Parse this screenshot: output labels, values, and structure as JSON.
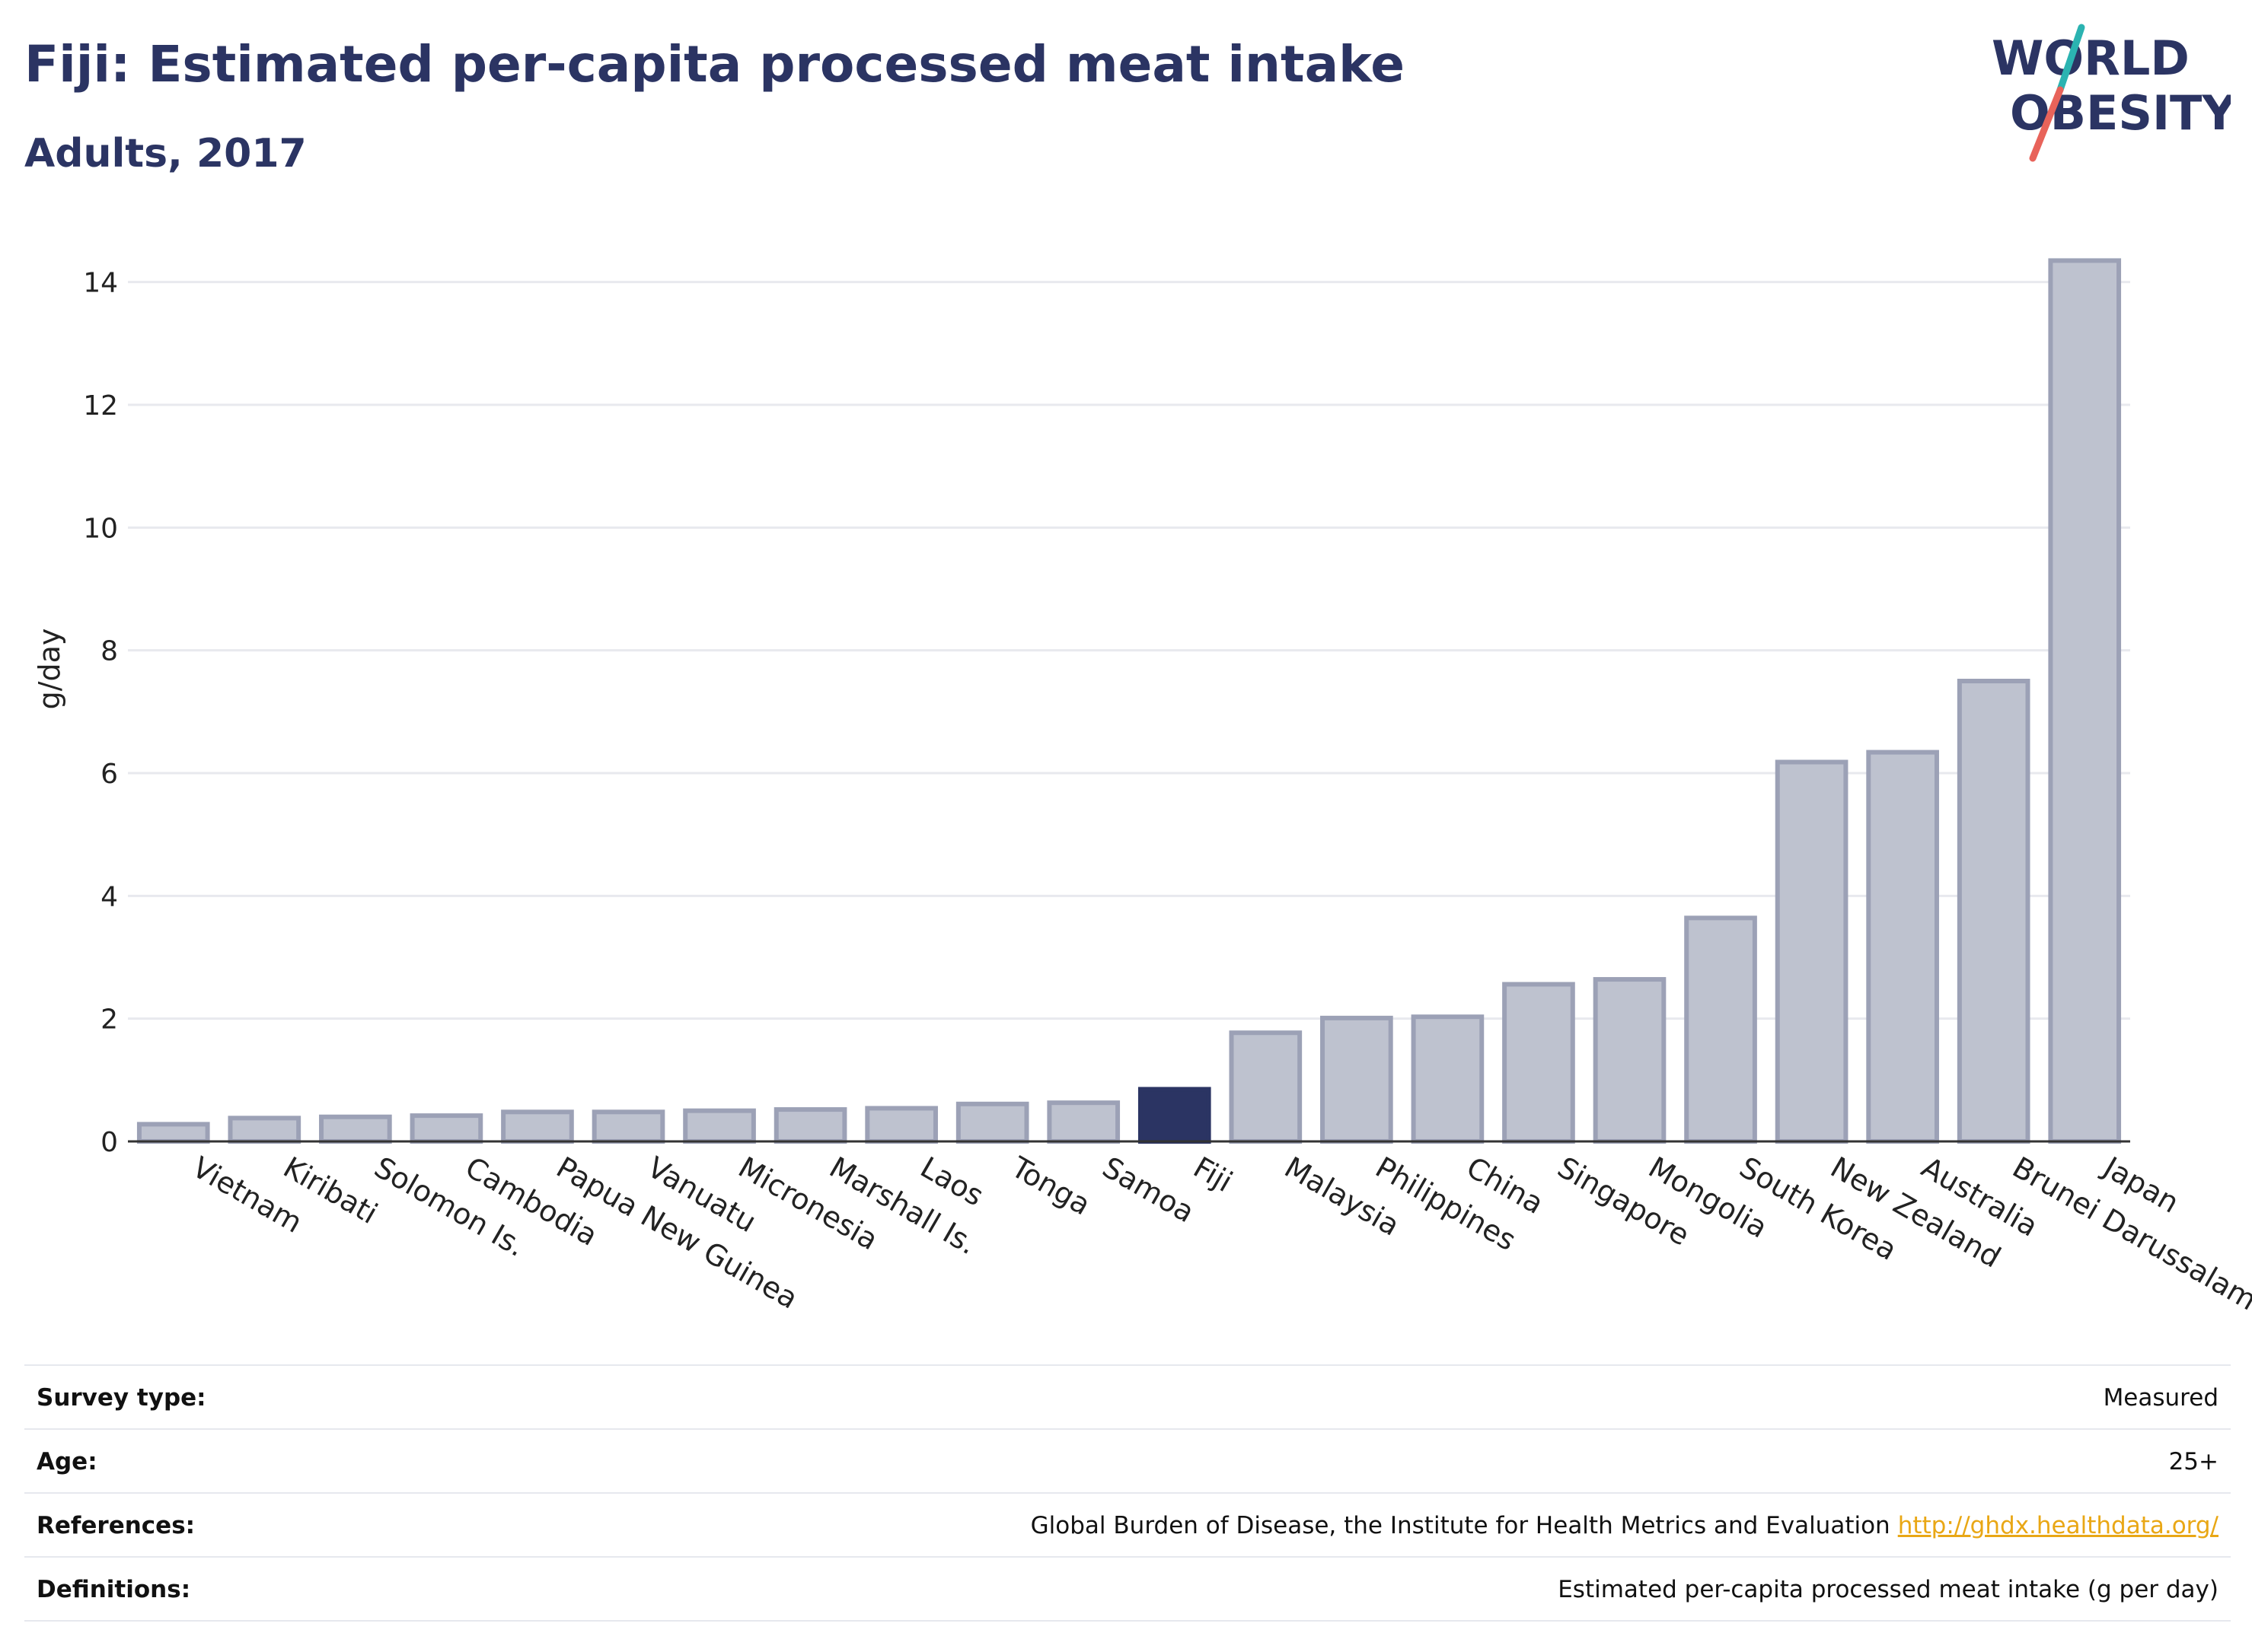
{
  "header": {
    "title": "Fiji: Estimated per-capita processed meat intake",
    "subtitle": "Adults, 2017"
  },
  "logo": {
    "line1": "WORLD",
    "line2": "OBESITY",
    "text_color": "#2b3463",
    "slash_colors": [
      "#2bb3b1",
      "#e8635a"
    ]
  },
  "chart_data": {
    "type": "bar",
    "ylabel": "g/day",
    "ylim": [
      0,
      15
    ],
    "yticks": [
      0,
      2,
      4,
      6,
      8,
      10,
      12,
      14
    ],
    "grid": true,
    "highlight": "Fiji",
    "categories": [
      "Vietnam",
      "Kiribati",
      "Solomon Is.",
      "Cambodia",
      "Papua New Guinea",
      "Vanuatu",
      "Micronesia",
      "Marshall Is.",
      "Laos",
      "Tonga",
      "Samoa",
      "Fiji",
      "Malaysia",
      "Philippines",
      "China",
      "Singapore",
      "Mongolia",
      "South Korea",
      "New Zealand",
      "Australia",
      "Brunei Darussalam",
      "Japan"
    ],
    "values": [
      0.28,
      0.38,
      0.4,
      0.42,
      0.48,
      0.48,
      0.5,
      0.52,
      0.54,
      0.61,
      0.63,
      0.85,
      1.77,
      2.01,
      2.03,
      2.56,
      2.64,
      3.64,
      6.18,
      6.34,
      7.5,
      14.35
    ],
    "colors": {
      "bar": "#bec2cf",
      "bar_stroke": "#9ca1b6",
      "highlight": "#2b3463",
      "grid": "#e8e9ee",
      "axis": "#333333"
    }
  },
  "footer": {
    "rows": [
      {
        "key": "Survey type:",
        "value": "Measured"
      },
      {
        "key": "Age:",
        "value": "25+"
      },
      {
        "key": "References:",
        "value": "Global Burden of Disease, the Institute for Health Metrics and Evaluation",
        "link": "http://ghdx.healthdata.org/"
      },
      {
        "key": "Definitions:",
        "value": "Estimated per-capita processed meat intake (g per day)"
      }
    ]
  }
}
